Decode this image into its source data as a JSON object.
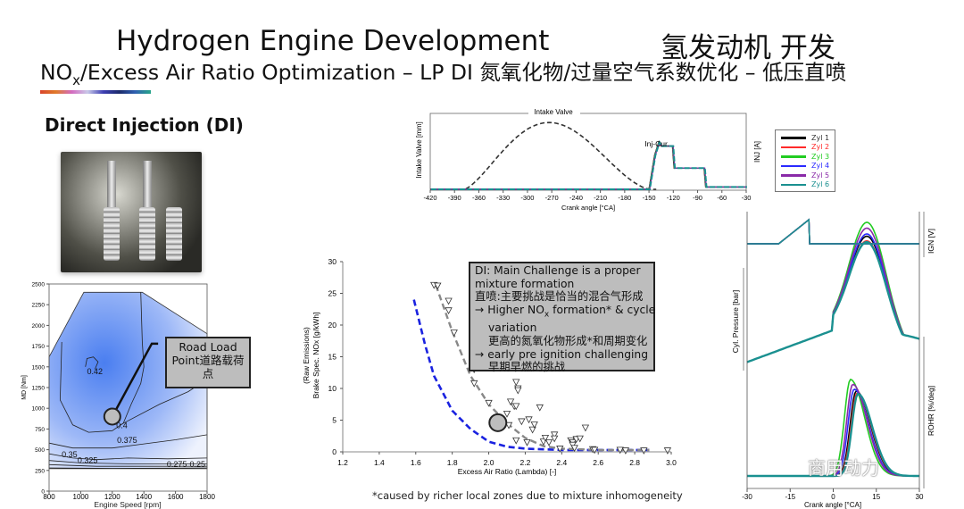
{
  "slide": {
    "title": "Hydrogen Engine  Development",
    "title_cn": "氢发动机  开发",
    "subtitle_pre": "NO",
    "subtitle_sub": "x",
    "subtitle_post": "/Excess Air Ratio Optimization – LP DI 氮氧化物/过量空气系数优化 – 低压直喷",
    "section_heading": "Direct Injection (DI)",
    "footnote": "*caused by richer local zones due to mixture inhomogeneity",
    "watermark": "商用动力",
    "road_load_label": "Road Load Point道路载荷点",
    "callout": {
      "line1": "DI: Main Challenge is a proper",
      "line2": "mixture formation",
      "line3": "直喷:主要挑战是恰当的混合气形成",
      "line4_pre": "→ Higher NO",
      "line4_sub": "x",
      "line4_post": " formation* & cycle",
      "line5": "variation",
      "line6": "更高的氮氧化物形成*和周期变化",
      "line7": "→ early pre ignition challenging",
      "line8": "早期早燃的挑战"
    },
    "colors": {
      "highlight_fill": "#bdbdbd",
      "map_blue": "#4a7ef0",
      "rainbow_bar": [
        "#d9442b",
        "#d36bc0",
        "#3d3fb3",
        "#27a58a"
      ]
    }
  },
  "chart_data": [
    {
      "id": "efficiency_map",
      "type": "contour",
      "xlabel": "Engine Speed [rpm]",
      "ylabel": "MD [Nm]",
      "xlim": [
        800,
        1800
      ],
      "ylim": [
        0,
        2500
      ],
      "xticks": [
        "800",
        "1000",
        "1200",
        "1400",
        "1600",
        "1800"
      ],
      "yticks": [
        "0",
        "250",
        "500",
        "750",
        "1000",
        "1250",
        "1500",
        "1750",
        "2000",
        "2250",
        "2500"
      ],
      "boundary": [
        [
          800,
          1620
        ],
        [
          1020,
          2400
        ],
        [
          1390,
          2400
        ],
        [
          1800,
          1900
        ],
        [
          1800,
          270
        ],
        [
          800,
          270
        ]
      ],
      "contours": [
        {
          "level": "0.42",
          "points": [
            [
              1030,
              1500
            ],
            [
              1040,
              1600
            ],
            [
              1080,
              1620
            ],
            [
              1110,
              1560
            ],
            [
              1090,
              1470
            ]
          ]
        },
        {
          "level": "0.4",
          "points": [
            [
              880,
              1800
            ],
            [
              870,
              1100
            ],
            [
              950,
              800
            ],
            [
              1050,
              710
            ],
            [
              1200,
              730
            ],
            [
              1270,
              820
            ],
            [
              1320,
              1050
            ],
            [
              1380,
              1300
            ],
            [
              1400,
              1500
            ],
            [
              1390,
              1800
            ],
            [
              1380,
              2400
            ]
          ]
        },
        {
          "level": "0.4",
          "points": [
            [
              1250,
              800
            ],
            [
              1500,
              1050
            ],
            [
              1680,
              1200
            ],
            [
              1800,
              1350
            ]
          ]
        },
        {
          "level": "0.375",
          "points": [
            [
              800,
              580
            ],
            [
              950,
              520
            ],
            [
              1200,
              520
            ],
            [
              1400,
              570
            ],
            [
              1600,
              620
            ],
            [
              1800,
              680
            ]
          ]
        },
        {
          "level": "0.35",
          "points": [
            [
              800,
              450
            ],
            [
              950,
              400
            ],
            [
              1100,
              380
            ],
            [
              1300,
              400
            ],
            [
              1550,
              390
            ],
            [
              1800,
              400
            ]
          ]
        },
        {
          "level": "0.325",
          "points": [
            [
              800,
              370
            ],
            [
              1000,
              340
            ],
            [
              1300,
              330
            ],
            [
              1800,
              330
            ]
          ]
        },
        {
          "level": "0.275",
          "points": [
            [
              800,
              320
            ],
            [
              1100,
              300
            ],
            [
              1500,
              300
            ],
            [
              1800,
              300
            ]
          ]
        },
        {
          "level": "0.25",
          "points": [
            [
              800,
              280
            ],
            [
              1200,
              275
            ],
            [
              1800,
              280
            ]
          ]
        }
      ],
      "contour_labels": [
        {
          "text": "0.42",
          "x": 1040,
          "y": 1410
        },
        {
          "text": "0.4",
          "x": 1225,
          "y": 760
        },
        {
          "text": "0.375",
          "x": 1230,
          "y": 580
        },
        {
          "text": "0.35",
          "x": 880,
          "y": 410
        },
        {
          "text": "0.325",
          "x": 980,
          "y": 340
        },
        {
          "text": "0.275",
          "x": 1545,
          "y": 290
        },
        {
          "text": "0.25",
          "x": 1690,
          "y": 290
        }
      ],
      "highlight_point": {
        "x": 1200,
        "y": 900
      }
    },
    {
      "id": "intake_injection",
      "type": "line",
      "xlabel": "Crank angle [°CA]",
      "ylabel_left": "Intake Valve [mm]",
      "ylabel_right": "INJ [A]",
      "xlim": [
        -420,
        -30
      ],
      "xticks": [
        "-420",
        "-390",
        "-360",
        "-330",
        "-300",
        "-270",
        "-240",
        "-210",
        "-180",
        "-150",
        "-120",
        "-90",
        "-60",
        "-30"
      ],
      "annotations": [
        "Intake Valve",
        "Inj-Cur."
      ],
      "intake_valve": {
        "start": -378,
        "peak_x": -262,
        "end": -148,
        "peak_norm": 0.88
      },
      "injector_current_norm": [
        [
          -420,
          0
        ],
        [
          -150,
          0
        ],
        [
          -143,
          0.45
        ],
        [
          -138,
          0.62
        ],
        [
          -135,
          0.57
        ],
        [
          -121,
          0.57
        ],
        [
          -119,
          0.28
        ],
        [
          -82,
          0.28
        ],
        [
          -80,
          0.03
        ],
        [
          -30,
          0.03
        ]
      ]
    },
    {
      "id": "combustion_traces",
      "type": "line",
      "xlabel": "Crank angle [°CA]",
      "ylabels": [
        "IGN [V]",
        "Cyl. Pressure [bar]",
        "ROHR [%/deg]"
      ],
      "xlim": [
        -30,
        30
      ],
      "xticks": [
        "-30",
        "-15",
        "0",
        "15",
        "30"
      ],
      "series": [
        {
          "name": "Zyl 1",
          "color": "#000000",
          "pressure_peak_norm": 0.84,
          "rohr_peak_norm": 0.88,
          "rohr_peak_x": 8
        },
        {
          "name": "Zyl 2",
          "color": "#ff2a2a",
          "pressure_peak_norm": 0.8,
          "rohr_peak_norm": 0.86,
          "rohr_peak_x": 8.3
        },
        {
          "name": "Zyl 3",
          "color": "#22cc22",
          "pressure_peak_norm": 0.96,
          "rohr_peak_norm": 1.0,
          "rohr_peak_x": 6
        },
        {
          "name": "Zyl 4",
          "color": "#2a2aff",
          "pressure_peak_norm": 0.86,
          "rohr_peak_norm": 0.9,
          "rohr_peak_x": 7.3
        },
        {
          "name": "Zyl 5",
          "color": "#8a2aa8",
          "pressure_peak_norm": 0.91,
          "rohr_peak_norm": 0.95,
          "rohr_peak_x": 6.8
        },
        {
          "name": "Zyl 6",
          "color": "#1a9090",
          "pressure_peak_norm": 0.79,
          "rohr_peak_norm": 0.85,
          "rohr_peak_x": 8.6
        }
      ],
      "ignition_ramp": {
        "start": -19,
        "end": -8.5
      }
    },
    {
      "id": "nox_vs_lambda",
      "type": "scatter",
      "xlabel": "Excess Air Ratio (Lambda) [-]",
      "ylabel": "Brake Spec. NOx [g/kWh]",
      "ylabel2": "(Raw Emissions)",
      "xlim": [
        1.2,
        3.0
      ],
      "ylim": [
        0,
        30
      ],
      "xticks": [
        "1.2",
        "1.4",
        "1.6",
        "1.8",
        "2.0",
        "2.2",
        "2.4",
        "2.6",
        "2.8",
        "3.0"
      ],
      "yticks": [
        "0",
        "5",
        "10",
        "15",
        "20",
        "25",
        "30"
      ],
      "points": [
        [
          1.7,
          26.3
        ],
        [
          1.72,
          26.2
        ],
        [
          1.78,
          23.8
        ],
        [
          1.78,
          22.3
        ],
        [
          1.81,
          18.8
        ],
        [
          1.92,
          13
        ],
        [
          1.92,
          10.8
        ],
        [
          2.0,
          7.7
        ],
        [
          2.1,
          6
        ],
        [
          2.11,
          4.2
        ],
        [
          2.12,
          7.9
        ],
        [
          2.14,
          7.2
        ],
        [
          2.15,
          7.2
        ],
        [
          2.15,
          11
        ],
        [
          2.16,
          10
        ],
        [
          2.16,
          9.7
        ],
        [
          2.15,
          1.8
        ],
        [
          2.18,
          4.8
        ],
        [
          2.21,
          1.5
        ],
        [
          2.22,
          5.1
        ],
        [
          2.24,
          3.5
        ],
        [
          2.25,
          4.3
        ],
        [
          2.28,
          7
        ],
        [
          2.3,
          1.6
        ],
        [
          2.31,
          2.2
        ],
        [
          2.33,
          1.5
        ],
        [
          2.36,
          2.7
        ],
        [
          2.36,
          2.1
        ],
        [
          2.39,
          0.5
        ],
        [
          2.45,
          1.8
        ],
        [
          2.46,
          1.5
        ],
        [
          2.46,
          1.1
        ],
        [
          2.47,
          0.6
        ],
        [
          2.48,
          2
        ],
        [
          2.5,
          2.1
        ],
        [
          2.53,
          3.8
        ],
        [
          2.57,
          0.4
        ],
        [
          2.58,
          0.3
        ],
        [
          2.72,
          0.3
        ],
        [
          2.75,
          0.2
        ],
        [
          2.85,
          0.2
        ],
        [
          2.98,
          0.2
        ]
      ],
      "trend_di": [
        [
          1.71,
          26.3
        ],
        [
          1.8,
          19
        ],
        [
          1.9,
          12
        ],
        [
          2.0,
          7.5
        ],
        [
          2.1,
          4.5
        ],
        [
          2.2,
          2.2
        ],
        [
          2.3,
          0.9
        ],
        [
          2.4,
          0.5
        ],
        [
          2.6,
          0.3
        ],
        [
          2.88,
          0.3
        ]
      ],
      "trend_blue": [
        [
          1.59,
          24
        ],
        [
          1.65,
          17
        ],
        [
          1.7,
          12
        ],
        [
          1.8,
          6.5
        ],
        [
          1.9,
          3.6
        ],
        [
          2.0,
          1.6
        ],
        [
          2.1,
          0.8
        ],
        [
          2.2,
          0.5
        ],
        [
          2.4,
          0.3
        ],
        [
          2.88,
          0.3
        ]
      ],
      "highlight_point": {
        "x": 2.05,
        "y": 4.6
      }
    }
  ]
}
